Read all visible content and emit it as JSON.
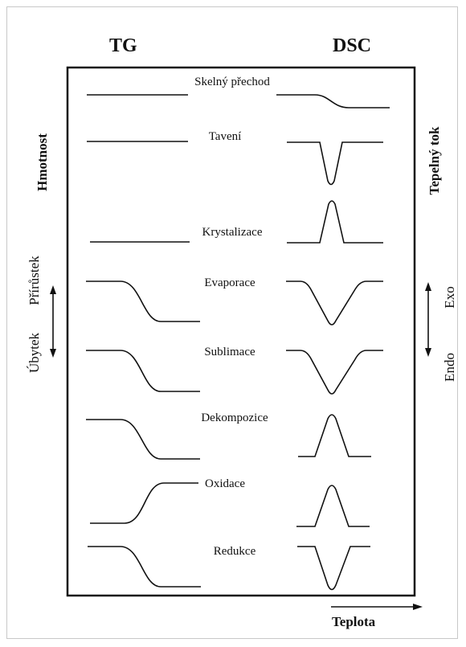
{
  "columns": {
    "left": "TG",
    "right": "DSC"
  },
  "axes": {
    "left": "Hmotnost",
    "right": "Tepelný tok",
    "bottom": "Teplota",
    "left_up": "Přírůstek",
    "left_down": "Úbytek",
    "right_up": "Exo",
    "right_down": "Endo"
  },
  "rows": [
    {
      "label": "Skelný přechod",
      "tg": "flat",
      "dsc": "step-down"
    },
    {
      "label": "Tavení",
      "tg": "flat",
      "dsc": "trough"
    },
    {
      "label": "Krystalizace",
      "tg": "flat",
      "dsc": "peak"
    },
    {
      "label": "Evaporace",
      "tg": "step-down",
      "dsc": "trough"
    },
    {
      "label": "Sublimace",
      "tg": "step-down",
      "dsc": "trough"
    },
    {
      "label": "Dekompozice",
      "tg": "step-down",
      "dsc": "peak"
    },
    {
      "label": "Oxidace",
      "tg": "step-up",
      "dsc": "peak"
    },
    {
      "label": "Redukce",
      "tg": "step-down",
      "dsc": "trough"
    }
  ],
  "colors": {
    "line": "#111111",
    "frame": "#c8c8c8"
  }
}
